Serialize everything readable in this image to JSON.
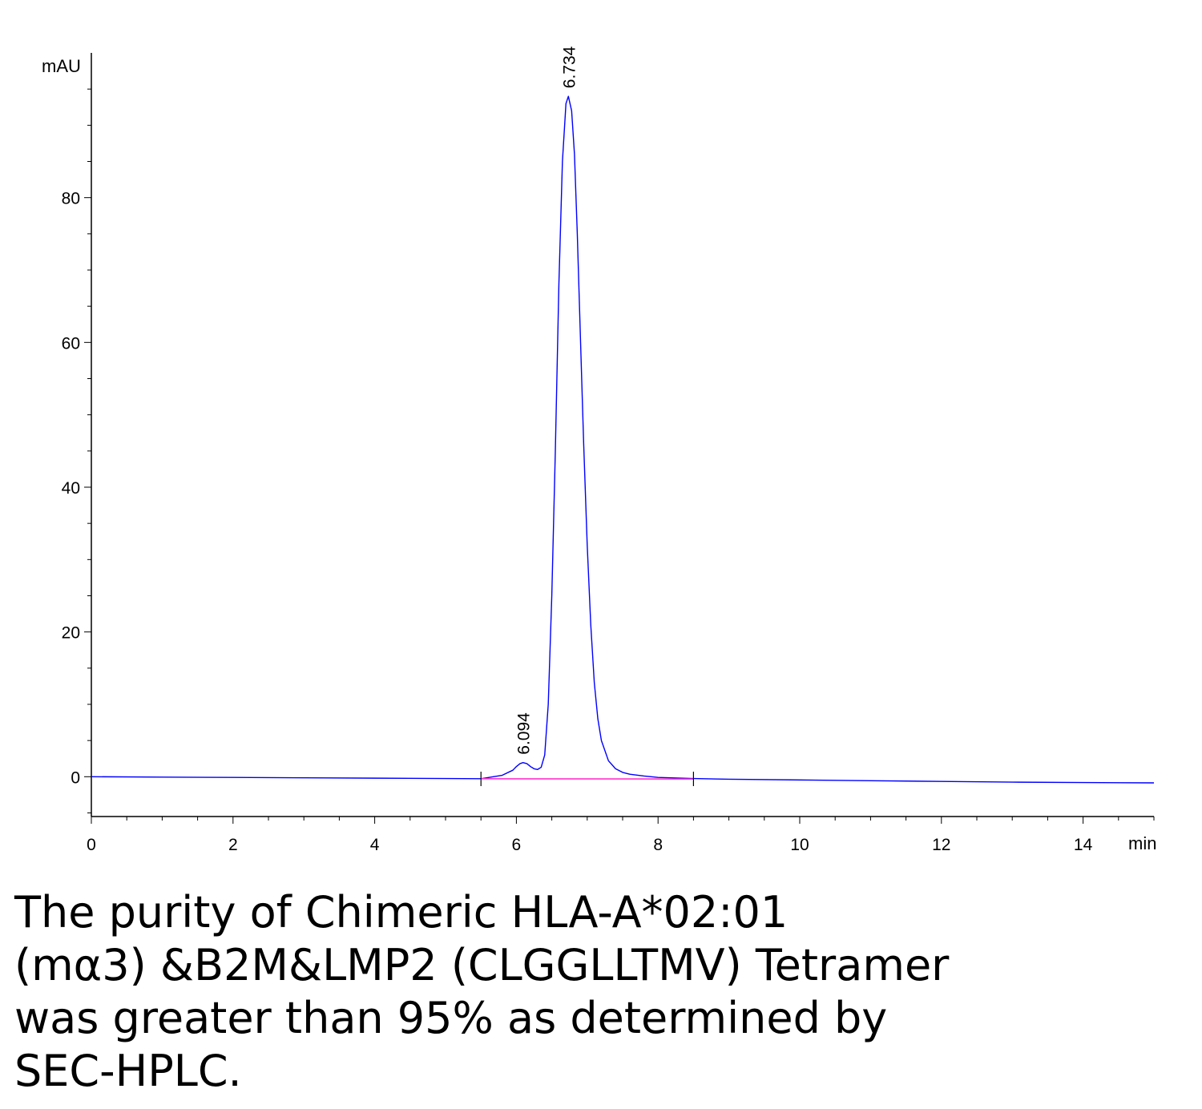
{
  "chart_data": {
    "type": "line",
    "title": "",
    "xlabel": "min",
    "ylabel": "mAU",
    "xlim": [
      0,
      15
    ],
    "ylim": [
      -5.5,
      100
    ],
    "x_ticks": [
      0,
      2,
      4,
      6,
      8,
      10,
      12,
      14
    ],
    "y_ticks": [
      0,
      20,
      40,
      60,
      80
    ],
    "x_minor_step": 0.5,
    "y_minor_step": 5,
    "grid": false,
    "series": [
      {
        "color": "#0000ff",
        "x": [
          0.0,
          1.0,
          2.0,
          3.0,
          4.0,
          5.0,
          5.5,
          5.8,
          5.95,
          6.0,
          6.05,
          6.094,
          6.15,
          6.2,
          6.25,
          6.3,
          6.35,
          6.4,
          6.45,
          6.5,
          6.55,
          6.6,
          6.65,
          6.7,
          6.734,
          6.78,
          6.82,
          6.86,
          6.9,
          6.95,
          7.0,
          7.05,
          7.1,
          7.15,
          7.2,
          7.3,
          7.4,
          7.5,
          7.6,
          7.8,
          8.0,
          8.5,
          9.0,
          10.0,
          11.0,
          12.0,
          13.0,
          14.0,
          15.0
        ],
        "y": [
          0.0,
          -0.05,
          -0.1,
          -0.15,
          -0.2,
          -0.25,
          -0.28,
          0.2,
          0.9,
          1.4,
          1.8,
          1.95,
          1.8,
          1.4,
          1.1,
          1.0,
          1.3,
          3.0,
          10.0,
          25.0,
          45.0,
          68.0,
          85.0,
          93.0,
          94.0,
          92.0,
          86.0,
          75.0,
          62.0,
          46.0,
          32.0,
          21.0,
          13.0,
          8.0,
          5.0,
          2.2,
          1.1,
          0.6,
          0.35,
          0.1,
          -0.1,
          -0.25,
          -0.35,
          -0.45,
          -0.55,
          -0.65,
          -0.75,
          -0.8,
          -0.85
        ]
      },
      {
        "color": "#ff33cc",
        "x": [
          5.5,
          8.5
        ],
        "y": [
          -0.28,
          -0.32
        ]
      }
    ],
    "annotations": [
      {
        "label": "6.094",
        "x": 6.094,
        "y": 1.95
      },
      {
        "label": "6.734",
        "x": 6.734,
        "y": 94.0
      }
    ],
    "integration_markers": [
      5.5,
      8.5
    ]
  },
  "caption": {
    "lines": [
      "The purity of Chimeric HLA-A*02:01",
      "(mα3) &B2M&LMP2 (CLGGLLTMV) Tetramer",
      "was greater than 95% as determined by",
      "SEC-HPLC."
    ]
  }
}
